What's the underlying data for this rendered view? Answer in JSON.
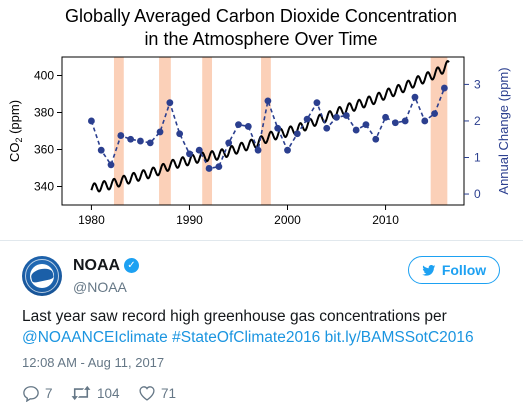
{
  "chart_data": {
    "type": "line",
    "title": "Globally Averaged Carbon Dioxide Concentration\nin the Atmosphere Over Time",
    "title_lines": [
      "Globally Averaged Carbon Dioxide Concentration",
      "in the Atmosphere Over Time"
    ],
    "xlabel": "",
    "ylabel_left": "CO2 (ppm)",
    "ylabel_right": "Annual Change (ppm)",
    "xlim": [
      1977,
      2018
    ],
    "ylim_left": [
      330,
      410
    ],
    "ylim_right": [
      -0.3,
      3.75
    ],
    "x_ticks": [
      1980,
      1990,
      2000,
      2010
    ],
    "y_ticks_left": [
      340,
      360,
      380,
      400
    ],
    "y_ticks_right": [
      0,
      1,
      2,
      3
    ],
    "grid": false,
    "el_nino_periods": [
      [
        1982.3,
        1983.3
      ],
      [
        1986.9,
        1988.1
      ],
      [
        1991.3,
        1992.3
      ],
      [
        1997.3,
        1998.3
      ],
      [
        2014.6,
        2016.3
      ]
    ],
    "co2_series": {
      "name": "CO2 (ppm)",
      "color": "#000000",
      "x_start": 1980,
      "x_end": 2016.5,
      "annual_means": [
        [
          1980,
          338.8
        ],
        [
          1981,
          340.1
        ],
        [
          1982,
          341.1
        ],
        [
          1983,
          342.8
        ],
        [
          1984,
          344.4
        ],
        [
          1985,
          345.9
        ],
        [
          1986,
          347.2
        ],
        [
          1987,
          348.9
        ],
        [
          1988,
          351.5
        ],
        [
          1989,
          352.9
        ],
        [
          1990,
          354.2
        ],
        [
          1991,
          355.6
        ],
        [
          1992,
          356.4
        ],
        [
          1993,
          357.1
        ],
        [
          1994,
          358.8
        ],
        [
          1995,
          360.6
        ],
        [
          1996,
          362.4
        ],
        [
          1997,
          363.8
        ],
        [
          1998,
          366.6
        ],
        [
          1999,
          368.3
        ],
        [
          2000,
          369.5
        ],
        [
          2001,
          371.1
        ],
        [
          2002,
          373.2
        ],
        [
          2003,
          375.8
        ],
        [
          2004,
          377.5
        ],
        [
          2005,
          379.8
        ],
        [
          2006,
          381.9
        ],
        [
          2007,
          383.8
        ],
        [
          2008,
          385.6
        ],
        [
          2009,
          387.4
        ],
        [
          2010,
          389.9
        ],
        [
          2011,
          391.7
        ],
        [
          2012,
          393.9
        ],
        [
          2013,
          396.5
        ],
        [
          2014,
          398.6
        ],
        [
          2015,
          400.8
        ],
        [
          2016,
          404.2
        ]
      ],
      "seasonal_amplitude": 2.5
    },
    "annual_change_series": {
      "name": "Annual Change (ppm)",
      "color": "#2b3f8f",
      "x": [
        1980,
        1981,
        1982,
        1983,
        1984,
        1985,
        1986,
        1987,
        1988,
        1989,
        1990,
        1991,
        1992,
        1993,
        1994,
        1995,
        1996,
        1997,
        1998,
        1999,
        2000,
        2001,
        2002,
        2003,
        2004,
        2005,
        2006,
        2007,
        2008,
        2009,
        2010,
        2011,
        2012,
        2013,
        2014,
        2015,
        2016
      ],
      "y": [
        2.0,
        1.2,
        0.8,
        1.6,
        1.5,
        1.45,
        1.4,
        1.7,
        2.5,
        1.65,
        1.1,
        1.2,
        0.7,
        0.75,
        1.4,
        1.9,
        1.85,
        1.2,
        2.55,
        1.8,
        1.2,
        1.65,
        2.05,
        2.5,
        1.8,
        2.1,
        2.15,
        1.75,
        1.9,
        1.5,
        2.1,
        1.95,
        2.0,
        2.65,
        2.0,
        2.2,
        2.9
      ]
    }
  },
  "tweet": {
    "display_name": "NOAA",
    "verified_glyph": "✓",
    "handle": "@NOAA",
    "follow_label": "Follow",
    "text_plain": "Last year saw record high greenhouse gas concentrations per",
    "link_mention": "@NOAANCEIclimate",
    "link_hashtag": "#StateOfClimate2016",
    "link_url": "bit.ly/BAMSSotC2016",
    "timestamp": "12:08 AM - Aug 11, 2017",
    "reply_count": "7",
    "retweet_count": "104",
    "like_count": "71"
  },
  "colors": {
    "accent": "#1da1f2",
    "link": "#1b95e0",
    "el_nino_band": "#fbd0b8",
    "muted_text": "#657786",
    "divider": "#e1e8ed"
  },
  "icons": {
    "reply": "reply-icon",
    "retweet": "retweet-icon",
    "like": "heart-icon",
    "verified": "verified-badge-icon",
    "follow": "twitter-bird-icon"
  }
}
